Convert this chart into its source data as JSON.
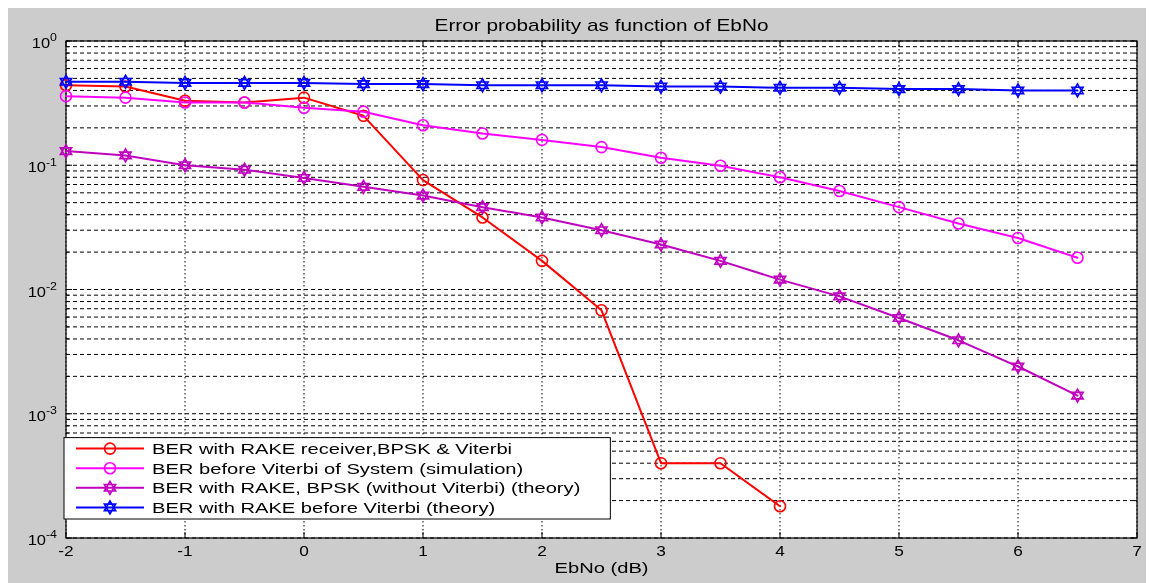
{
  "chart_data": {
    "type": "line",
    "title": "Error probability as function of EbNo",
    "xlabel": "EbNo (dB)",
    "xlim": [
      -2,
      7
    ],
    "xticks": [
      -2,
      -1,
      0,
      1,
      2,
      3,
      4,
      5,
      6,
      7
    ],
    "ylim": [
      0.0001,
      1
    ],
    "yticks": [
      {
        "value": 0.0001,
        "label": "10$^{-4}$"
      },
      {
        "value": 0.0002,
        "label": null
      },
      {
        "value": 0.0003,
        "label": null
      },
      {
        "value": 0.0004,
        "label": null
      },
      {
        "value": 0.0005,
        "label": null
      },
      {
        "value": 0.0006,
        "label": null
      },
      {
        "value": 0.0007,
        "label": null
      },
      {
        "value": 0.0008,
        "label": null
      },
      {
        "value": 0.0009,
        "label": null
      },
      {
        "value": 0.001,
        "label": "10$^{-3}$"
      },
      {
        "value": 0.002,
        "label": null
      },
      {
        "value": 0.003,
        "label": null
      },
      {
        "value": 0.004,
        "label": null
      },
      {
        "value": 0.005,
        "label": null
      },
      {
        "value": 0.006,
        "label": null
      },
      {
        "value": 0.007,
        "label": null
      },
      {
        "value": 0.008,
        "label": null
      },
      {
        "value": 0.009,
        "label": null
      },
      {
        "value": 0.01,
        "label": "10$^{-2}$"
      },
      {
        "value": 0.02,
        "label": null
      },
      {
        "value": 0.03,
        "label": null
      },
      {
        "value": 0.04,
        "label": null
      },
      {
        "value": 0.05,
        "label": null
      },
      {
        "value": 0.06,
        "label": null
      },
      {
        "value": 0.07,
        "label": null
      },
      {
        "value": 0.08,
        "label": null
      },
      {
        "value": 0.09,
        "label": null
      },
      {
        "value": 0.1,
        "label": "10$^{-1}$"
      },
      {
        "value": 0.2,
        "label": null
      },
      {
        "value": 0.3,
        "label": null
      },
      {
        "value": 0.4,
        "label": null
      },
      {
        "value": 0.5,
        "label": null
      },
      {
        "value": 0.6,
        "label": null
      },
      {
        "value": 0.7,
        "label": null
      },
      {
        "value": 0.8,
        "label": null
      },
      {
        "value": 0.9,
        "label": null
      },
      {
        "value": 1,
        "label": "10$^{0}$"
      }
    ],
    "log": "y",
    "grid": true,
    "legend": "bottom left",
    "series": [
      {
        "name": "BER with RAKE receiver,BPSK & Viterbi",
        "color": "#ff0000",
        "marker": "circle",
        "x": [
          -2,
          -1.5,
          -1,
          -0.5,
          0,
          0.5,
          1,
          1.5,
          2,
          2.5,
          3,
          3.5,
          4
        ],
        "values": [
          0.44,
          0.43,
          0.33,
          0.32,
          0.35,
          0.25,
          0.076,
          0.038,
          0.017,
          0.0068,
          0.0004,
          0.0004,
          0.00018
        ]
      },
      {
        "name": "BER before Viterbi of System (simulation)",
        "color": "#ff00ff",
        "marker": "circle",
        "x": [
          -2,
          -1.5,
          -1,
          -0.5,
          0,
          0.5,
          1,
          1.5,
          2,
          2.5,
          3,
          3.5,
          4,
          4.5,
          5,
          5.5,
          6,
          6.5
        ],
        "values": [
          0.36,
          0.35,
          0.32,
          0.32,
          0.29,
          0.27,
          0.21,
          0.18,
          0.16,
          0.14,
          0.115,
          0.099,
          0.08,
          0.062,
          0.046,
          0.034,
          0.026,
          0.018
        ]
      },
      {
        "name": "BER with RAKE, BPSK (without Viterbi) (theory)",
        "color": "#bf00bf",
        "marker": "star",
        "x": [
          -2,
          -1.5,
          -1,
          -0.5,
          0,
          0.5,
          1,
          1.5,
          2,
          2.5,
          3,
          3.5,
          4,
          4.5,
          5,
          5.5,
          6,
          6.5
        ],
        "values": [
          0.13,
          0.12,
          0.1,
          0.092,
          0.079,
          0.067,
          0.057,
          0.046,
          0.038,
          0.03,
          0.023,
          0.017,
          0.012,
          0.0088,
          0.0059,
          0.0039,
          0.0024,
          0.0014
        ]
      },
      {
        "name": "BER with RAKE before Viterbi (theory)",
        "color": "#0000ff",
        "marker": "star",
        "x": [
          -2,
          -1.5,
          -1,
          -0.5,
          0,
          0.5,
          1,
          1.5,
          2,
          2.5,
          3,
          3.5,
          4,
          4.5,
          5,
          5.5,
          6,
          6.5
        ],
        "values": [
          0.47,
          0.47,
          0.46,
          0.46,
          0.46,
          0.45,
          0.45,
          0.44,
          0.44,
          0.44,
          0.43,
          0.43,
          0.42,
          0.42,
          0.41,
          0.41,
          0.4,
          0.4
        ]
      }
    ]
  }
}
